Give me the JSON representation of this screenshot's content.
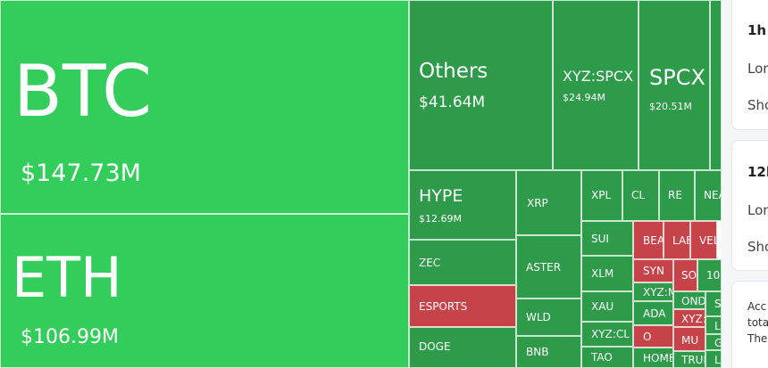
{
  "treemap": {
    "tiles": [
      {
        "name": "BTC",
        "value": "$147.73M",
        "kind": "gain-strong"
      },
      {
        "name": "ETH",
        "value": "$106.99M",
        "kind": "gain-strong"
      },
      {
        "name": "Others",
        "value": "$41.64M",
        "kind": "gain"
      },
      {
        "name": "XYZ:SPCX",
        "value": "$24.94M",
        "kind": "gain"
      },
      {
        "name": "SPCX",
        "value": "$20.51M",
        "kind": "gain"
      },
      {
        "name": "S",
        "value": "$",
        "kind": "gain"
      },
      {
        "name": "HYPE",
        "value": "$12.69M",
        "kind": "gain"
      },
      {
        "name": "XRP",
        "value": "",
        "kind": "gain"
      },
      {
        "name": "XPL",
        "value": "",
        "kind": "gain"
      },
      {
        "name": "CL",
        "value": "",
        "kind": "gain"
      },
      {
        "name": "RE",
        "value": "",
        "kind": "gain"
      },
      {
        "name": "NEA",
        "value": "",
        "kind": "gain"
      },
      {
        "name": "SUI",
        "value": "",
        "kind": "gain"
      },
      {
        "name": "BEA",
        "value": "",
        "kind": "loss"
      },
      {
        "name": "LAB",
        "value": "",
        "kind": "loss"
      },
      {
        "name": "VEL",
        "value": "",
        "kind": "loss"
      },
      {
        "name": "ZEC",
        "value": "",
        "kind": "gain"
      },
      {
        "name": "ASTER",
        "value": "",
        "kind": "gain"
      },
      {
        "name": "XLM",
        "value": "",
        "kind": "gain"
      },
      {
        "name": "SYN",
        "value": "",
        "kind": "loss"
      },
      {
        "name": "SO",
        "value": "",
        "kind": "loss"
      },
      {
        "name": "100",
        "value": "",
        "kind": "gain"
      },
      {
        "name": "ESPORTS",
        "value": "",
        "kind": "loss"
      },
      {
        "name": "XYZ:M",
        "value": "",
        "kind": "gain"
      },
      {
        "name": "XAU",
        "value": "",
        "kind": "gain"
      },
      {
        "name": "OND",
        "value": "",
        "kind": "gain"
      },
      {
        "name": "S",
        "value": "",
        "kind": "gain"
      },
      {
        "name": "ADA",
        "value": "",
        "kind": "gain"
      },
      {
        "name": "XYZ:",
        "value": "",
        "kind": "loss"
      },
      {
        "name": "WLD",
        "value": "",
        "kind": "gain"
      },
      {
        "name": "L",
        "value": "",
        "kind": "gain"
      },
      {
        "name": "XYZ:CL",
        "value": "",
        "kind": "gain"
      },
      {
        "name": "O",
        "value": "",
        "kind": "loss"
      },
      {
        "name": "MU",
        "value": "",
        "kind": "loss"
      },
      {
        "name": "G",
        "value": "",
        "kind": "gain"
      },
      {
        "name": "DOGE",
        "value": "",
        "kind": "gain"
      },
      {
        "name": "BNB",
        "value": "",
        "kind": "gain"
      },
      {
        "name": "TAO",
        "value": "",
        "kind": "gain"
      },
      {
        "name": "HOME",
        "value": "",
        "kind": "gain"
      },
      {
        "name": "TRUM",
        "value": "",
        "kind": "gain"
      },
      {
        "name": "L",
        "value": "",
        "kind": "gain"
      }
    ]
  },
  "sidebar": {
    "cards": [
      {
        "title": "1h",
        "long": "Lon",
        "short": "Sho"
      },
      {
        "title": "12h",
        "long": "Lon",
        "short": "Sho"
      }
    ],
    "note": [
      "Acc",
      "tota",
      "The"
    ]
  }
}
